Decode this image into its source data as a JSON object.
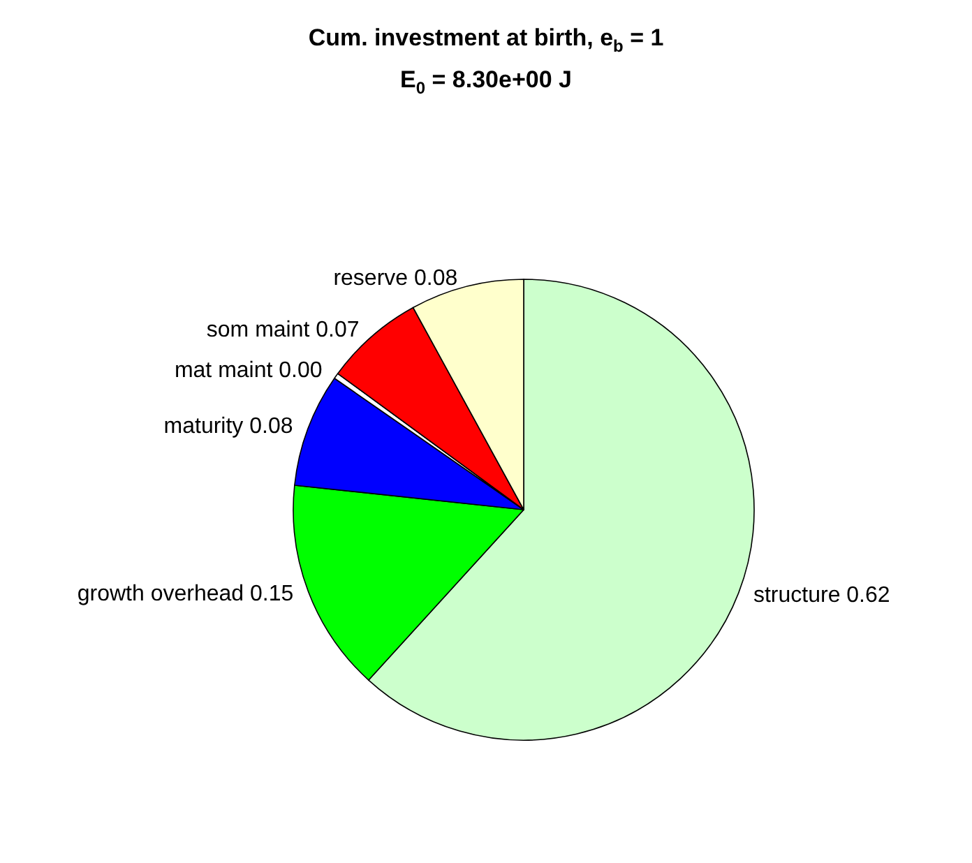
{
  "chart_data": {
    "type": "pie",
    "title": "Cum. investment at birth, e$_{b}$ = 1",
    "subtitle": "E$_{0}$ = 8.30e+00 J",
    "categories": [
      "structure",
      "growth overhead",
      "maturity",
      "mat maint",
      "som maint",
      "reserve"
    ],
    "values": [
      0.62,
      0.15,
      0.08,
      0.004,
      0.07,
      0.08
    ],
    "value_labels": [
      "0.62",
      "0.15",
      "0.08",
      "0.00",
      "0.07",
      "0.08"
    ],
    "colors": [
      "#ccffcc",
      "#00ff00",
      "#0000ff",
      "#ffffff",
      "#ff0000",
      "#ffffcc"
    ]
  }
}
